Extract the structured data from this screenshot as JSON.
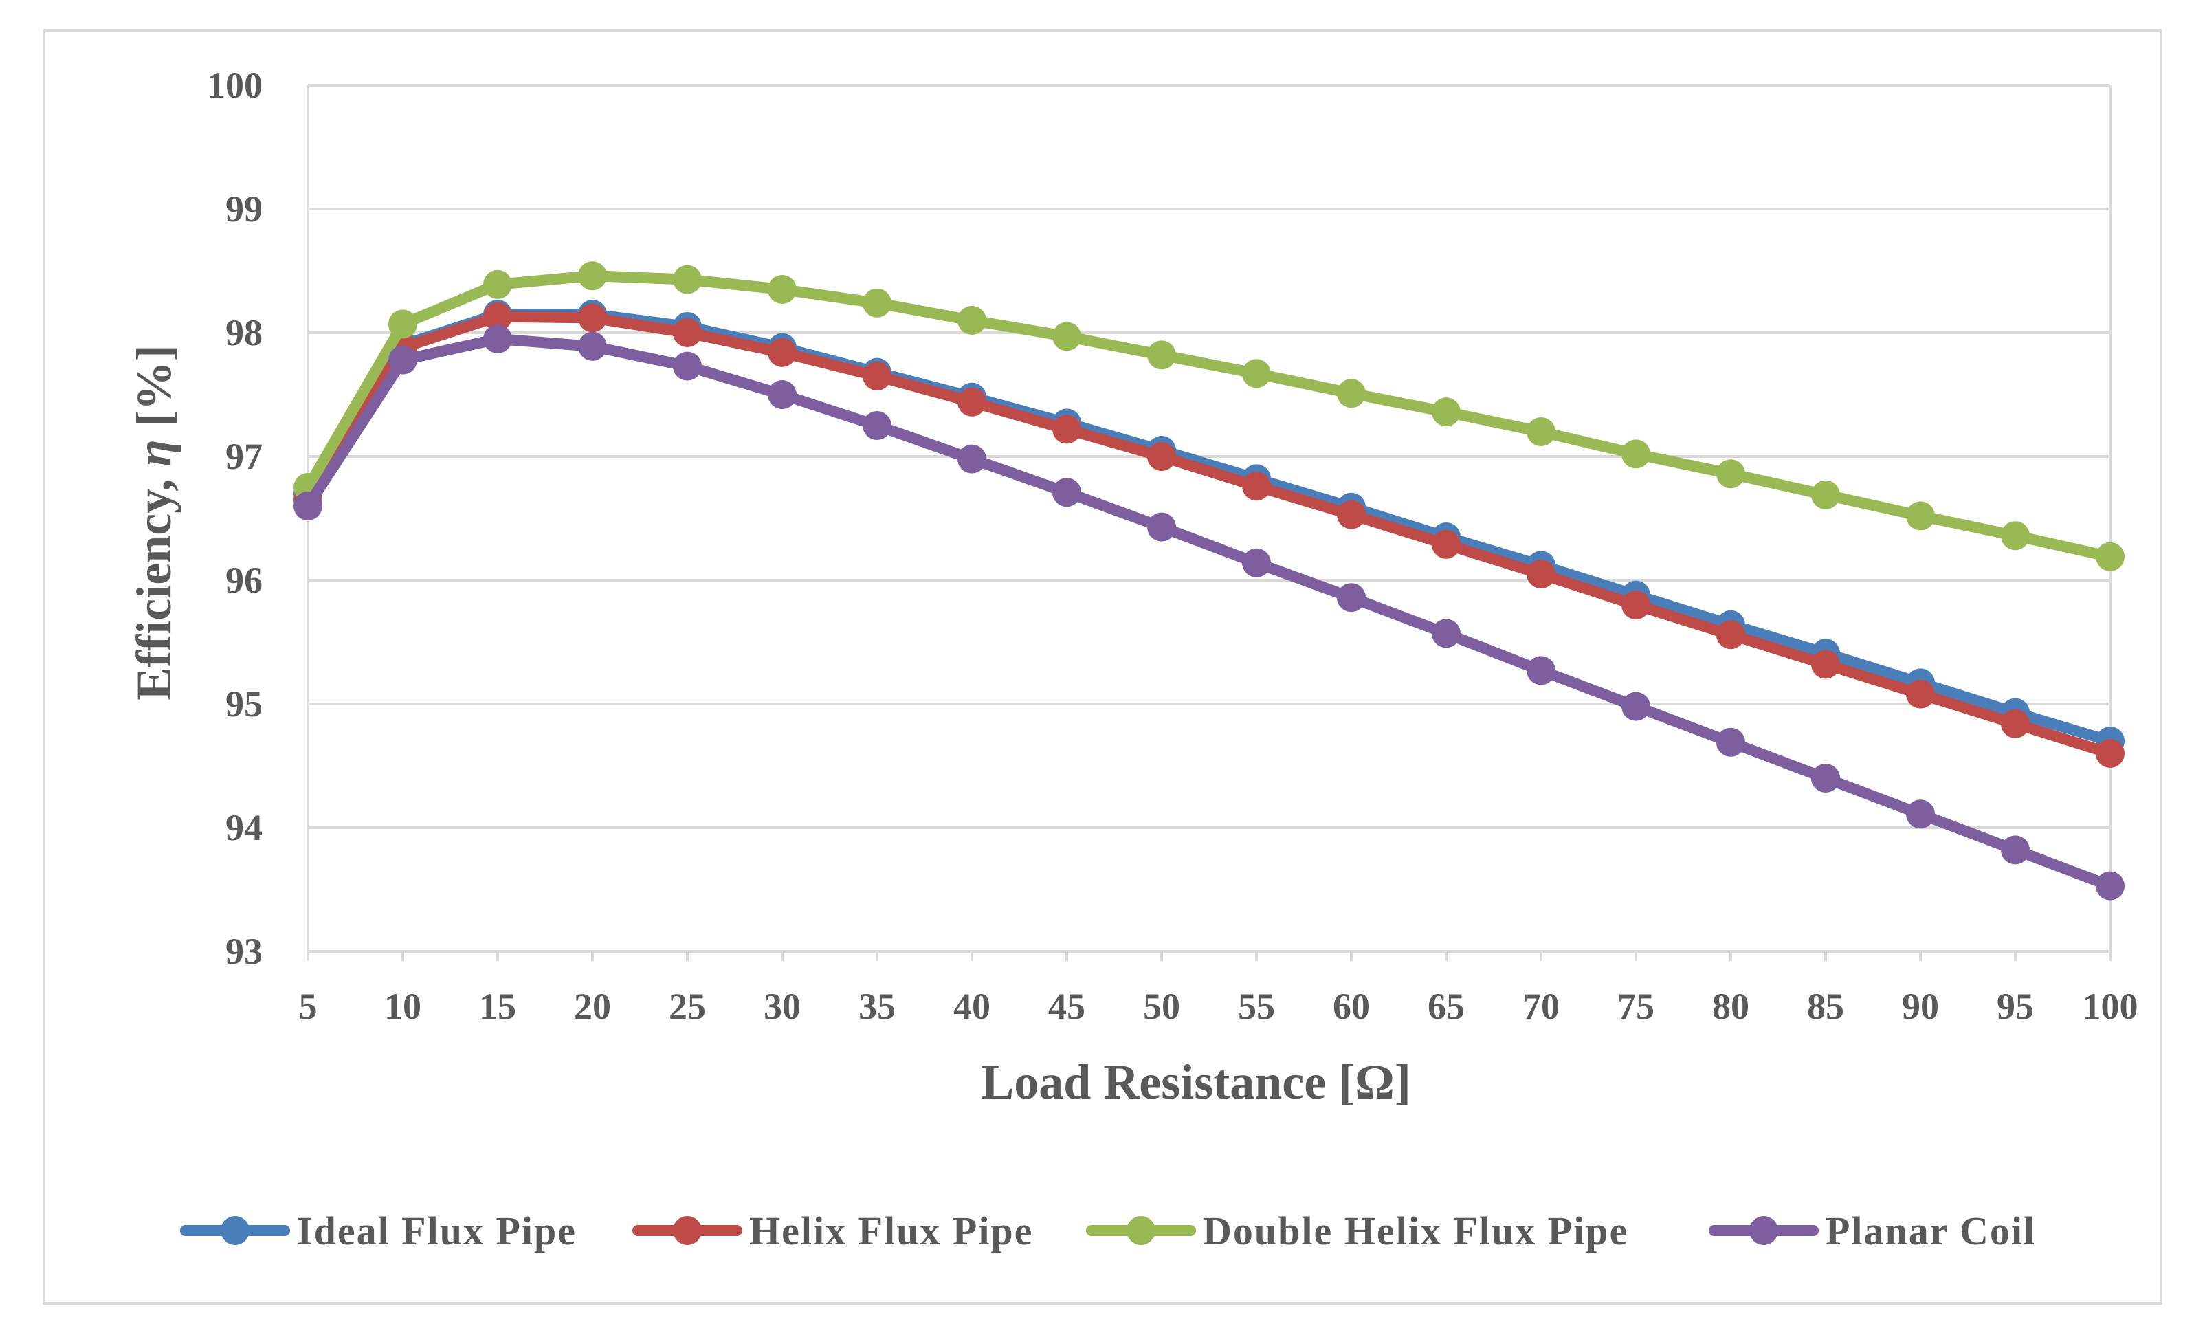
{
  "chart_data": {
    "type": "line",
    "title": "",
    "xlabel": "Load Resistance [Ω]",
    "ylabel_prefix": "Efficiency, ",
    "ylabel_symbol": "η",
    "ylabel_suffix": " [%]",
    "ylim": [
      93,
      100
    ],
    "yticks": [
      93,
      94,
      95,
      96,
      97,
      98,
      99,
      100
    ],
    "grid": true,
    "legend_position": "bottom",
    "x": [
      5,
      10,
      15,
      20,
      25,
      30,
      35,
      40,
      45,
      50,
      55,
      60,
      65,
      70,
      75,
      80,
      85,
      90,
      95,
      100
    ],
    "series": [
      {
        "name": "Ideal Flux Pipe",
        "color": "#4a7ebb",
        "values": [
          96.7,
          97.9,
          98.15,
          98.15,
          98.05,
          97.88,
          97.68,
          97.48,
          97.27,
          97.05,
          96.82,
          96.59,
          96.35,
          96.12,
          95.88,
          95.64,
          95.41,
          95.17,
          94.93,
          94.7
        ]
      },
      {
        "name": "Helix Flux Pipe",
        "color": "#be4b48",
        "values": [
          96.65,
          97.88,
          98.13,
          98.12,
          98.0,
          97.84,
          97.65,
          97.44,
          97.22,
          97.0,
          96.76,
          96.53,
          96.29,
          96.05,
          95.8,
          95.56,
          95.32,
          95.08,
          94.84,
          94.6
        ]
      },
      {
        "name": "Double Helix Flux Pipe",
        "color": "#98b954",
        "values": [
          96.75,
          98.07,
          98.39,
          98.46,
          98.43,
          98.35,
          98.24,
          98.1,
          97.97,
          97.82,
          97.67,
          97.51,
          97.36,
          97.2,
          97.02,
          96.86,
          96.69,
          96.52,
          96.36,
          96.19
        ]
      },
      {
        "name": "Planar Coil",
        "color": "#7d5fa0",
        "values": [
          96.6,
          97.78,
          97.95,
          97.89,
          97.73,
          97.5,
          97.25,
          96.98,
          96.71,
          96.43,
          96.14,
          95.86,
          95.57,
          95.27,
          94.98,
          94.69,
          94.4,
          94.11,
          93.82,
          93.53
        ]
      }
    ]
  }
}
